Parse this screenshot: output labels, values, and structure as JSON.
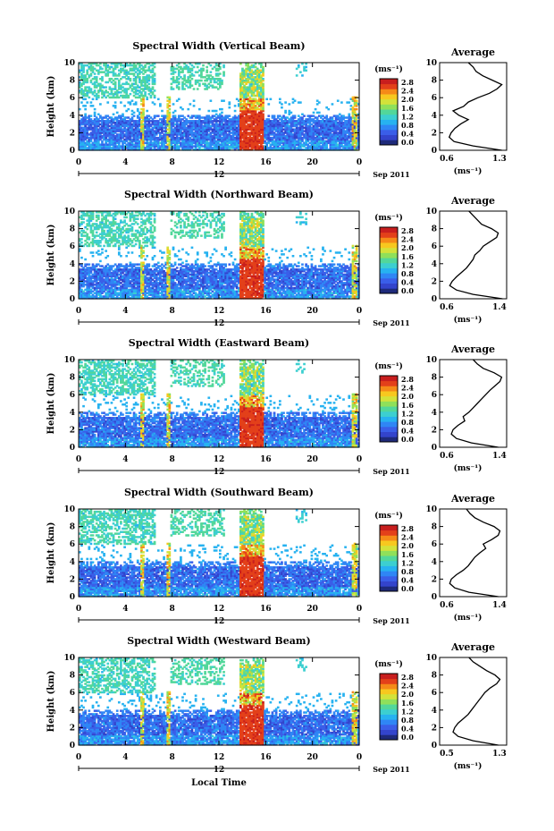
{
  "figure": {
    "xlabel": "Local Time",
    "date_label": "Sep 2011",
    "day_label": "12",
    "colorbar_unit": "(ms⁻¹)",
    "colorbar_ticks": [
      "2.8",
      "2.4",
      "2.0",
      "1.6",
      "1.2",
      "0.8",
      "0.4",
      "0.0"
    ],
    "avg_title": "Average",
    "avg_xlabel": "(ms⁻¹)",
    "ylabel": "Height (km)",
    "x_ticks": [
      "0",
      "4",
      "8",
      "12",
      "16",
      "20",
      "0"
    ],
    "y_ticks": [
      "0",
      "2",
      "4",
      "6",
      "8",
      "10"
    ]
  },
  "colors": {
    "scale": [
      "#1e2a7a",
      "#3344cc",
      "#3a5ee8",
      "#2f86f5",
      "#27b2f0",
      "#3ccfd0",
      "#52d79a",
      "#8fe05a",
      "#d3e23a",
      "#f7c81f",
      "#f58a18",
      "#e3401a",
      "#c81e1e"
    ]
  },
  "chart_data": [
    {
      "type": "heatmap",
      "title": "Spectral Width (Vertical Beam)",
      "xlim": [
        0,
        24
      ],
      "ylim": [
        0,
        10
      ],
      "zlim": [
        0.0,
        3.0
      ],
      "avg_xlim": [
        0.6,
        1.3
      ],
      "avg_xticks": [
        "0.6",
        "1.3"
      ],
      "avg_profile": {
        "height": [
          0,
          0.5,
          1,
          1.5,
          2,
          2.5,
          3,
          3.5,
          4,
          4.5,
          5,
          5.5,
          6,
          6.5,
          7,
          7.5,
          8,
          8.5,
          9,
          9.5,
          10
        ],
        "value": [
          1.25,
          0.95,
          0.75,
          0.7,
          0.72,
          0.76,
          0.82,
          0.9,
          0.8,
          0.74,
          0.85,
          0.9,
          1.0,
          1.12,
          1.2,
          1.25,
          1.15,
          1.05,
          0.98,
          0.95,
          0.9
        ]
      }
    },
    {
      "type": "heatmap",
      "title": "Spectral Width (Northward Beam)",
      "xlim": [
        0,
        24
      ],
      "ylim": [
        0,
        10
      ],
      "zlim": [
        0.0,
        3.0
      ],
      "avg_xlim": [
        0.6,
        1.4
      ],
      "avg_xticks": [
        "0.6",
        "1.4"
      ],
      "avg_profile": {
        "height": [
          0,
          0.5,
          1,
          1.5,
          2,
          2.5,
          3,
          3.5,
          4,
          4.5,
          5,
          5.5,
          6,
          6.5,
          7,
          7.5,
          8,
          8.5,
          9,
          9.5,
          10
        ],
        "value": [
          1.35,
          1.0,
          0.8,
          0.72,
          0.75,
          0.8,
          0.86,
          0.92,
          0.96,
          1.0,
          1.02,
          1.08,
          1.12,
          1.2,
          1.28,
          1.3,
          1.22,
          1.1,
          1.05,
          1.0,
          0.95
        ]
      }
    },
    {
      "type": "heatmap",
      "title": "Spectral Width (Eastward Beam)",
      "xlim": [
        0,
        24
      ],
      "ylim": [
        0,
        10
      ],
      "zlim": [
        0.0,
        3.0
      ],
      "avg_xlim": [
        0.6,
        1.4
      ],
      "avg_xticks": [
        "0.6",
        "1.4"
      ],
      "avg_profile": {
        "height": [
          0,
          0.5,
          1,
          1.5,
          2,
          2.5,
          3,
          3.5,
          4,
          4.5,
          5,
          5.5,
          6,
          6.5,
          7,
          7.5,
          8,
          8.5,
          9,
          9.5,
          10
        ],
        "value": [
          1.3,
          0.98,
          0.8,
          0.74,
          0.76,
          0.82,
          0.9,
          0.88,
          0.95,
          1.0,
          1.05,
          1.1,
          1.15,
          1.2,
          1.26,
          1.32,
          1.34,
          1.25,
          1.12,
          1.05,
          1.0
        ]
      }
    },
    {
      "type": "heatmap",
      "title": "Spectral Width (Southward Beam)",
      "xlim": [
        0,
        24
      ],
      "ylim": [
        0,
        10
      ],
      "zlim": [
        0.0,
        3.0
      ],
      "avg_xlim": [
        0.6,
        1.4
      ],
      "avg_xticks": [
        "0.6",
        "1.4"
      ],
      "avg_profile": {
        "height": [
          0,
          0.5,
          1,
          1.5,
          2,
          2.5,
          3,
          3.5,
          4,
          4.5,
          5,
          5.5,
          6,
          6.5,
          7,
          7.5,
          8,
          8.5,
          9,
          9.5,
          10
        ],
        "value": [
          1.3,
          0.95,
          0.78,
          0.72,
          0.74,
          0.8,
          0.88,
          0.94,
          0.98,
          1.02,
          1.08,
          1.15,
          1.12,
          1.22,
          1.3,
          1.32,
          1.25,
          1.12,
          1.02,
          0.96,
          0.92
        ]
      }
    },
    {
      "type": "heatmap",
      "title": "Spectral Width (Westward Beam)",
      "xlim": [
        0,
        24
      ],
      "ylim": [
        0,
        10
      ],
      "zlim": [
        0.0,
        3.0
      ],
      "avg_xlim": [
        0.5,
        1.3
      ],
      "avg_xticks": [
        "0.5",
        "1.3"
      ],
      "avg_profile": {
        "height": [
          0,
          0.5,
          1,
          1.5,
          2,
          2.5,
          3,
          3.5,
          4,
          4.5,
          5,
          5.5,
          6,
          6.5,
          7,
          7.5,
          8,
          8.5,
          9,
          9.5,
          10
        ],
        "value": [
          1.2,
          0.9,
          0.72,
          0.66,
          0.68,
          0.72,
          0.78,
          0.84,
          0.88,
          0.92,
          0.96,
          1.0,
          1.04,
          1.1,
          1.18,
          1.22,
          1.16,
          1.06,
          0.98,
          0.9,
          0.85
        ]
      }
    }
  ]
}
